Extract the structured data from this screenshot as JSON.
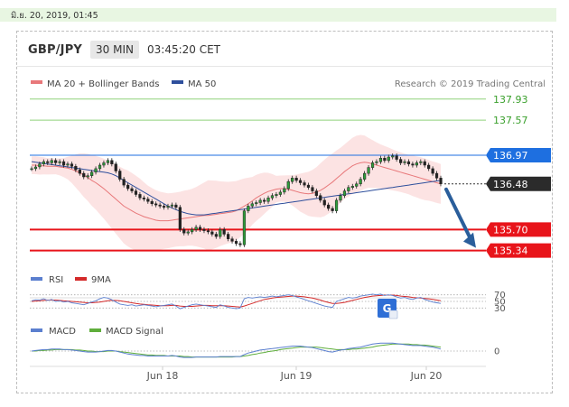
{
  "date_stamp": "มิ.ย. 20, 2019, 01:45",
  "header": {
    "symbol": "GBP/JPY",
    "timeframe": "30 MIN",
    "time": "03:45:20 CET"
  },
  "legend": {
    "ma20_bollinger": "MA 20 + Bollinger Bands",
    "ma50": "MA 50",
    "credit": "Research © 2019 Trading Central"
  },
  "colors": {
    "ma20": "#e8787a",
    "bands_fill": "#fbdada",
    "ma50": "#2e4f9c",
    "resistance_green": "#8fd27a",
    "level_red": "#e8141a",
    "level_blue": "#1e6fe0",
    "last_price": "#2b2b2b",
    "arrow": "#2a5e9b",
    "rsi": "#5b7fcf",
    "rsi_ma": "#d42a2a",
    "macd": "#5b7fcf",
    "macd_signal": "#5fae3c"
  },
  "chart_data": {
    "type": "candlestick",
    "instrument": "GBP/JPY",
    "interval": "30 MIN",
    "y_range": [
      135.15,
      138.05
    ],
    "levels": [
      {
        "value": 137.93,
        "label": "137.93",
        "kind": "resistance"
      },
      {
        "value": 137.57,
        "label": "137.57",
        "kind": "resistance"
      },
      {
        "value": 136.97,
        "label": "136.97",
        "kind": "pivot"
      },
      {
        "value": 136.48,
        "label": "136.48",
        "kind": "last"
      },
      {
        "value": 135.7,
        "label": "135.70",
        "kind": "support"
      },
      {
        "value": 135.34,
        "label": "135.34",
        "kind": "support"
      }
    ],
    "x_labels": [
      "Jun 18",
      "Jun 19",
      "Jun 20"
    ],
    "closes": [
      136.74,
      136.77,
      136.82,
      136.86,
      136.84,
      136.88,
      136.84,
      136.86,
      136.8,
      136.82,
      136.78,
      136.72,
      136.66,
      136.6,
      136.62,
      136.68,
      136.74,
      136.8,
      136.84,
      136.88,
      136.82,
      136.7,
      136.56,
      136.46,
      136.4,
      136.36,
      136.3,
      136.24,
      136.22,
      136.18,
      136.14,
      136.12,
      136.1,
      136.08,
      136.1,
      136.12,
      136.08,
      135.7,
      135.64,
      135.66,
      135.7,
      135.74,
      135.7,
      135.68,
      135.66,
      135.62,
      135.58,
      135.7,
      135.62,
      135.54,
      135.5,
      135.46,
      135.44,
      136.02,
      136.1,
      136.14,
      136.16,
      136.2,
      136.18,
      136.24,
      136.28,
      136.3,
      136.34,
      136.4,
      136.52,
      136.58,
      136.54,
      136.5,
      136.46,
      136.42,
      136.36,
      136.28,
      136.2,
      136.12,
      136.06,
      136.02,
      136.2,
      136.28,
      136.36,
      136.42,
      136.44,
      136.48,
      136.56,
      136.66,
      136.76,
      136.84,
      136.86,
      136.92,
      136.88,
      136.94,
      136.96,
      136.9,
      136.84,
      136.86,
      136.82,
      136.8,
      136.84,
      136.86,
      136.8,
      136.74,
      136.66,
      136.58,
      136.48
    ],
    "ma20_values": [
      136.8,
      136.8,
      136.79,
      136.79,
      136.78,
      136.78,
      136.78,
      136.77,
      136.76,
      136.75,
      136.73,
      136.7,
      136.67,
      136.63,
      136.59,
      136.54,
      136.5,
      136.45,
      136.4,
      136.34,
      136.28,
      136.22,
      136.16,
      136.1,
      136.06,
      136.02,
      135.98,
      135.95,
      135.92,
      135.9,
      135.88,
      135.86,
      135.85,
      135.85,
      135.85,
      135.86,
      135.87,
      135.88,
      135.89,
      135.9,
      135.91,
      135.92,
      135.93,
      135.94,
      135.94,
      135.95,
      135.96,
      135.97,
      135.98,
      135.99,
      136.0,
      136.02,
      136.06,
      136.1,
      136.14,
      136.19,
      136.24,
      136.28,
      136.32,
      136.35,
      136.37,
      136.39,
      136.4,
      136.4,
      136.39,
      136.37,
      136.35,
      136.33,
      136.32,
      136.31,
      136.32,
      136.34,
      136.37,
      136.41,
      136.46,
      136.51,
      136.57,
      136.63,
      136.69,
      136.74,
      136.79,
      136.82,
      136.84,
      136.85,
      136.84,
      136.82,
      136.8,
      136.78,
      136.76,
      136.74,
      136.72,
      136.7,
      136.68,
      136.66,
      136.64,
      136.62,
      136.6,
      136.58,
      136.56,
      136.54,
      136.52,
      136.5,
      136.48
    ],
    "ma50_values": [
      136.86,
      136.85,
      136.84,
      136.83,
      136.82,
      136.81,
      136.8,
      136.79,
      136.78,
      136.77,
      136.76,
      136.75,
      136.74,
      136.73,
      136.72,
      136.71,
      136.7,
      136.69,
      136.68,
      136.67,
      136.65,
      136.62,
      136.58,
      136.54,
      136.5,
      136.46,
      136.42,
      136.38,
      136.34,
      136.3,
      136.26,
      136.22,
      136.18,
      136.14,
      136.1,
      136.07,
      136.04,
      136.01,
      135.99,
      135.97,
      135.96,
      135.95,
      135.95,
      135.95,
      135.96,
      135.97,
      135.98,
      135.99,
      136.0,
      136.01,
      136.02,
      136.03,
      136.04,
      136.05,
      136.06,
      136.07,
      136.08,
      136.09,
      136.1,
      136.11,
      136.12,
      136.13,
      136.14,
      136.15,
      136.16,
      136.17,
      136.18,
      136.19,
      136.2,
      136.21,
      136.22,
      136.23,
      136.24,
      136.25,
      136.26,
      136.27,
      136.28,
      136.29,
      136.3,
      136.31,
      136.32,
      136.33,
      136.34,
      136.35,
      136.36,
      136.37,
      136.38,
      136.39,
      136.4,
      136.41,
      136.42,
      136.43,
      136.44,
      136.45,
      136.46,
      136.47,
      136.48,
      136.49,
      136.5,
      136.51,
      136.52,
      136.53,
      136.54
    ],
    "forecast_arrow": {
      "from": 136.48,
      "to": 135.34
    },
    "rsi": {
      "name": "RSI",
      "ma_name": "9MA",
      "levels": [
        "70",
        "50",
        "30"
      ],
      "range": [
        20,
        80
      ],
      "values": [
        52,
        55,
        54,
        58,
        53,
        56,
        50,
        52,
        48,
        50,
        46,
        44,
        42,
        40,
        44,
        48,
        52,
        58,
        62,
        60,
        55,
        48,
        42,
        40,
        38,
        40,
        36,
        38,
        40,
        38,
        36,
        34,
        36,
        38,
        40,
        42,
        36,
        28,
        32,
        36,
        40,
        42,
        40,
        38,
        36,
        34,
        32,
        40,
        36,
        32,
        30,
        28,
        30,
        58,
        62,
        60,
        62,
        64,
        62,
        64,
        66,
        64,
        66,
        68,
        70,
        68,
        64,
        60,
        56,
        52,
        48,
        44,
        40,
        36,
        34,
        32,
        50,
        54,
        58,
        62,
        60,
        62,
        66,
        68,
        70,
        72,
        70,
        72,
        68,
        70,
        68,
        64,
        60,
        62,
        58,
        56,
        60,
        62,
        56,
        52,
        48,
        46,
        44
      ],
      "ma_values": [
        50,
        51,
        52,
        53,
        54,
        54,
        54,
        53,
        52,
        51,
        50,
        49,
        48,
        47,
        46,
        46,
        47,
        48,
        50,
        52,
        53,
        53,
        52,
        50,
        48,
        46,
        44,
        42,
        41,
        40,
        39,
        38,
        37,
        37,
        37,
        38,
        38,
        36,
        35,
        35,
        35,
        36,
        37,
        38,
        38,
        37,
        37,
        37,
        37,
        36,
        35,
        34,
        33,
        36,
        40,
        44,
        48,
        52,
        56,
        58,
        60,
        62,
        63,
        64,
        65,
        66,
        66,
        65,
        64,
        62,
        60,
        57,
        54,
        50,
        47,
        44,
        44,
        45,
        47,
        50,
        53,
        56,
        59,
        62,
        64,
        66,
        67,
        68,
        69,
        69,
        69,
        68,
        66,
        65,
        64,
        62,
        61,
        60,
        59,
        58,
        56,
        54,
        52
      ]
    },
    "macd": {
      "name": "MACD",
      "signal_name": "MACD Signal",
      "levels": [
        "0"
      ],
      "range": [
        -0.2,
        0.2
      ],
      "values": [
        0.0,
        0.01,
        0.02,
        0.03,
        0.03,
        0.04,
        0.04,
        0.04,
        0.03,
        0.03,
        0.02,
        0.01,
        0.0,
        -0.01,
        -0.02,
        -0.02,
        -0.02,
        -0.01,
        0.0,
        0.01,
        0.01,
        0.0,
        -0.02,
        -0.04,
        -0.06,
        -0.07,
        -0.08,
        -0.09,
        -0.09,
        -0.1,
        -0.1,
        -0.1,
        -0.1,
        -0.1,
        -0.1,
        -0.09,
        -0.1,
        -0.12,
        -0.13,
        -0.13,
        -0.13,
        -0.12,
        -0.12,
        -0.12,
        -0.12,
        -0.12,
        -0.12,
        -0.11,
        -0.11,
        -0.11,
        -0.11,
        -0.11,
        -0.11,
        -0.07,
        -0.04,
        -0.02,
        0.0,
        0.02,
        0.03,
        0.04,
        0.05,
        0.06,
        0.07,
        0.08,
        0.09,
        0.1,
        0.1,
        0.1,
        0.09,
        0.08,
        0.07,
        0.05,
        0.03,
        0.01,
        -0.01,
        -0.02,
        0.0,
        0.02,
        0.03,
        0.05,
        0.06,
        0.07,
        0.08,
        0.1,
        0.12,
        0.14,
        0.15,
        0.16,
        0.16,
        0.16,
        0.16,
        0.15,
        0.14,
        0.13,
        0.12,
        0.11,
        0.11,
        0.11,
        0.1,
        0.09,
        0.08,
        0.06,
        0.04
      ],
      "signal_values": [
        0.0,
        0.0,
        0.01,
        0.01,
        0.02,
        0.02,
        0.03,
        0.03,
        0.03,
        0.03,
        0.03,
        0.02,
        0.02,
        0.01,
        0.0,
        0.0,
        -0.01,
        -0.01,
        -0.01,
        0.0,
        0.0,
        0.0,
        -0.01,
        -0.02,
        -0.03,
        -0.04,
        -0.05,
        -0.06,
        -0.07,
        -0.08,
        -0.08,
        -0.09,
        -0.09,
        -0.09,
        -0.1,
        -0.1,
        -0.1,
        -0.1,
        -0.11,
        -0.11,
        -0.12,
        -0.12,
        -0.12,
        -0.12,
        -0.12,
        -0.12,
        -0.12,
        -0.12,
        -0.12,
        -0.12,
        -0.12,
        -0.11,
        -0.11,
        -0.1,
        -0.09,
        -0.07,
        -0.06,
        -0.04,
        -0.03,
        -0.01,
        0.0,
        0.01,
        0.03,
        0.04,
        0.05,
        0.06,
        0.07,
        0.08,
        0.08,
        0.08,
        0.08,
        0.08,
        0.07,
        0.06,
        0.05,
        0.04,
        0.03,
        0.03,
        0.03,
        0.03,
        0.04,
        0.04,
        0.05,
        0.06,
        0.07,
        0.08,
        0.1,
        0.11,
        0.12,
        0.13,
        0.14,
        0.14,
        0.14,
        0.14,
        0.14,
        0.13,
        0.13,
        0.12,
        0.12,
        0.11,
        0.1,
        0.09,
        0.08
      ]
    }
  }
}
